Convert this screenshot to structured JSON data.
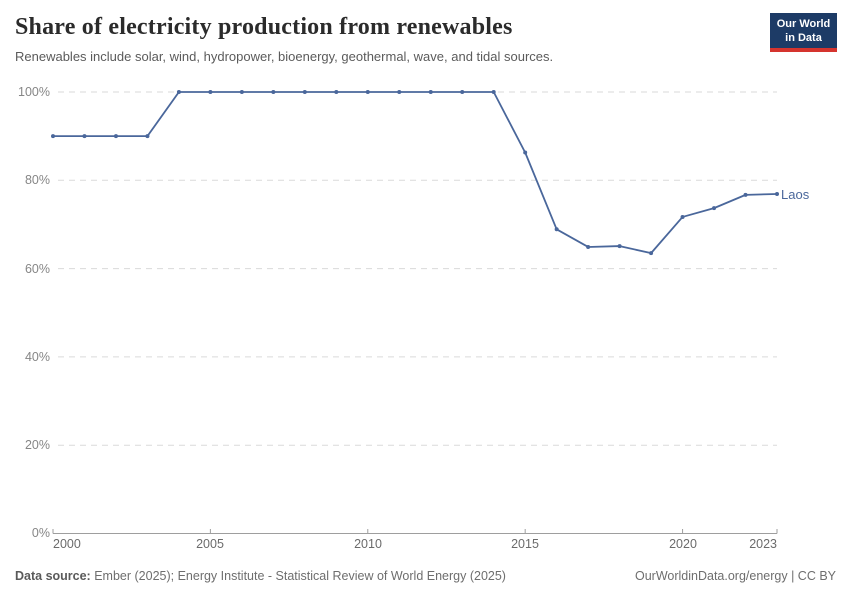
{
  "header": {
    "title": "Share of electricity production from renewables",
    "subtitle": "Renewables include solar, wind, hydropower, bioenergy, geothermal, wave, and tidal sources.",
    "logo": {
      "line1": "Our World",
      "line2": "in Data"
    }
  },
  "chart_data": {
    "type": "line",
    "title": "Share of electricity production from renewables",
    "x": [
      2000,
      2001,
      2002,
      2003,
      2004,
      2005,
      2006,
      2007,
      2008,
      2009,
      2010,
      2011,
      2012,
      2013,
      2014,
      2015,
      2016,
      2017,
      2018,
      2019,
      2020,
      2021,
      2022,
      2023
    ],
    "series": [
      {
        "name": "Laos",
        "color": "#4a679b",
        "values": [
          90,
          90,
          90,
          90,
          100,
          100,
          100,
          100,
          100,
          100,
          100,
          100,
          100,
          100,
          100,
          86.3,
          68.9,
          64.9,
          65.1,
          63.5,
          71.7,
          73.7,
          76.7,
          76.9
        ]
      }
    ],
    "xlabel": "",
    "ylabel": "",
    "ylim": [
      0,
      100
    ],
    "y_ticks": [
      0,
      20,
      40,
      60,
      80,
      100
    ],
    "y_tick_labels": [
      "0%",
      "20%",
      "40%",
      "60%",
      "80%",
      "100%"
    ],
    "x_ticks": [
      2000,
      2005,
      2010,
      2015,
      2020,
      2023
    ],
    "x_tick_labels": [
      "2000",
      "2005",
      "2010",
      "2015",
      "2020",
      "2023"
    ],
    "grid": "horizontal-dashed",
    "legend": "end-of-line-label"
  },
  "footer": {
    "source_label": "Data source:",
    "source_text": " Ember (2025); Energy Institute - Statistical Review of World Energy (2025)",
    "credit": "OurWorldinData.org/energy | CC BY"
  },
  "colors": {
    "line": "#4a679b",
    "logo_bg": "#1d3b66",
    "logo_bar": "#d5342e",
    "grid": "#dadada",
    "axis": "#9e9e9e",
    "title_text": "#2b2b2b",
    "subtitle_text": "#5b5b5b",
    "tick_text": "#868686",
    "footer_text": "#6e6e6e"
  }
}
